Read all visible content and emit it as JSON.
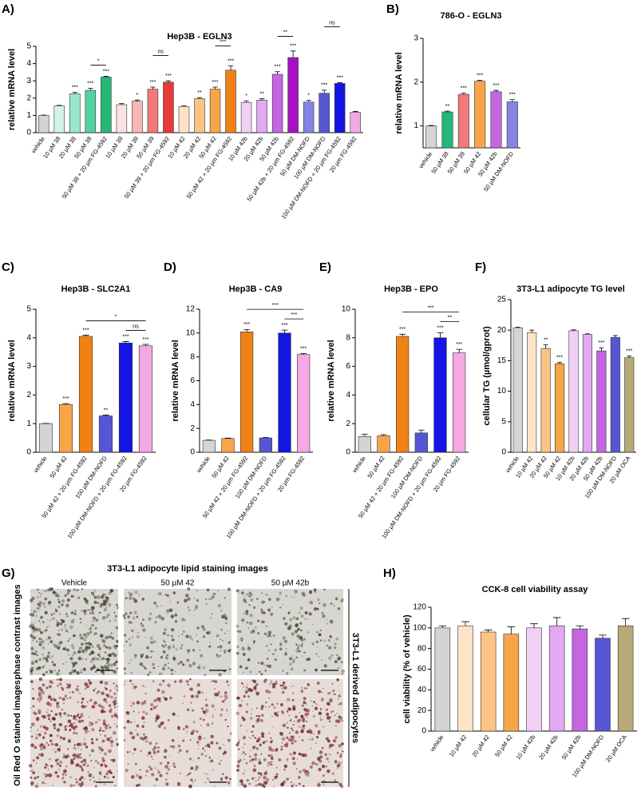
{
  "chart_data": [
    {
      "type": "bar",
      "panel": "A)",
      "title": "Hep3B - EGLN3",
      "ylabel": "relative mRNA level",
      "ylim": [
        0,
        5
      ],
      "yticks": [
        0,
        1,
        2,
        3,
        4,
        5
      ],
      "categories": [
        "vehicle",
        "10 µM 38",
        "20 µM 38",
        "50 µM 38",
        "50 µM 38 + 20 µm FG-4592",
        "10 µM 39",
        "20 µM 39",
        "50 µM 39",
        "50 µM 39 + 20 µm FG-4592",
        "10 µM 42",
        "20 µM 42",
        "50 µM 42",
        "50 µM 42 + 20 µm FG-4592",
        "10 µM 42b",
        "20 µM 42b",
        "50 µM 42b",
        "50 µM 42b + 20 µm FG-4592",
        "50 µM DM-NOFD",
        "100 µM DM-NOFD",
        "100 µM DM-NOFD + 20 µm FG-4592",
        "20 µm FG-4592"
      ],
      "values": [
        1.0,
        1.55,
        2.25,
        2.45,
        3.22,
        1.62,
        1.82,
        2.52,
        2.92,
        1.52,
        1.97,
        2.52,
        3.62,
        1.75,
        1.88,
        3.38,
        4.35,
        1.77,
        2.28,
        2.85,
        1.18
      ],
      "errors": [
        0.02,
        0.03,
        0.08,
        0.12,
        0.04,
        0.06,
        0.07,
        0.12,
        0.08,
        0.03,
        0.06,
        0.12,
        0.25,
        0.09,
        0.08,
        0.15,
        0.38,
        0.1,
        0.18,
        0.04,
        0.05
      ],
      "colors": [
        "#d4d4d4",
        "#d2f4e6",
        "#98e8cc",
        "#55d2a2",
        "#22b878",
        "#fde0e0",
        "#f9b4b4",
        "#f27a7a",
        "#e83838",
        "#fde3c6",
        "#fbc484",
        "#f8a448",
        "#f08214",
        "#f2d0f4",
        "#e2a8f2",
        "#c466e2",
        "#a412c4",
        "#8484e4",
        "#5656d4",
        "#1414e4",
        "#f4a8e4"
      ],
      "significance": [
        null,
        null,
        "***",
        "***",
        "***",
        null,
        "*",
        "***",
        "***",
        null,
        "**",
        "***",
        "***",
        "*",
        "**",
        "***",
        "***",
        "*",
        "***",
        "***",
        null
      ],
      "brackets": [
        {
          "between": [
            3,
            4
          ],
          "label": "*"
        },
        {
          "between": [
            7,
            8
          ],
          "label": "ns"
        },
        {
          "between": [
            11,
            12
          ],
          "label": "***"
        },
        {
          "between": [
            15,
            16
          ],
          "label": "**"
        },
        {
          "between": [
            18,
            19
          ],
          "label": "ns"
        }
      ]
    },
    {
      "type": "bar",
      "panel": "B)",
      "title": "786-O - EGLN3",
      "ylabel": "relative mRNA level",
      "ylim": [
        0.5,
        3
      ],
      "yticks": [
        1,
        2,
        3
      ],
      "categories": [
        "vehicle",
        "50 µM 38",
        "50 µM 39",
        "50 µM 42",
        "50 µM 42b",
        "50 µM DM-NOFD"
      ],
      "values": [
        1.0,
        1.32,
        1.72,
        2.02,
        1.78,
        1.55
      ],
      "errors": [
        0.01,
        0.02,
        0.03,
        0.02,
        0.03,
        0.05
      ],
      "colors": [
        "#d4d4d4",
        "#22b878",
        "#f27a7a",
        "#f8a448",
        "#c466e2",
        "#8484e4"
      ],
      "significance": [
        null,
        "**",
        "***",
        "***",
        "***",
        "***"
      ],
      "brackets": []
    },
    {
      "type": "bar",
      "panel": "C)",
      "title": "Hep3B - SLC2A1",
      "ylabel": "relative mRNA level",
      "ylim": [
        0,
        5
      ],
      "yticks": [
        0,
        1,
        2,
        3,
        4,
        5
      ],
      "categories": [
        "vehicle",
        "50 µM 42",
        "50 µM 42 + 20 µm FG-4592",
        "100 µM DM-NOFD",
        "100 µM DM-NOFD + 20 µm FG-4592",
        "20 µm FG-4592"
      ],
      "values": [
        1.0,
        1.67,
        4.05,
        1.27,
        3.82,
        3.72
      ],
      "errors": [
        0.01,
        0.03,
        0.04,
        0.03,
        0.05,
        0.05
      ],
      "colors": [
        "#d4d4d4",
        "#f8a448",
        "#f08214",
        "#5656d4",
        "#1414e4",
        "#f4a8e4"
      ],
      "significance": [
        null,
        "***",
        "***",
        "**",
        "***",
        "***"
      ],
      "brackets": [
        {
          "between": [
            2,
            5
          ],
          "label": "*"
        },
        {
          "between": [
            4,
            5
          ],
          "label": "ns"
        }
      ]
    },
    {
      "type": "bar",
      "panel": "D)",
      "title": "Hep3B - CA9",
      "ylabel": "relative mRNA level",
      "ylim": [
        0,
        12
      ],
      "yticks": [
        0,
        2,
        4,
        6,
        8,
        10,
        12
      ],
      "categories": [
        "vehicle",
        "50 µM 42",
        "50 µM 42 + 20 µm FG-4592",
        "100 µM DM-NOFD",
        "100 µM DM-NOFD + 20 µm FG-4592",
        "20 µm FG-4592"
      ],
      "values": [
        1.0,
        1.15,
        10.1,
        1.2,
        10.0,
        8.2
      ],
      "errors": [
        0.02,
        0.04,
        0.2,
        0.03,
        0.25,
        0.08
      ],
      "colors": [
        "#d4d4d4",
        "#f8a448",
        "#f08214",
        "#5656d4",
        "#1414e4",
        "#f4a8e4"
      ],
      "significance": [
        null,
        null,
        "***",
        null,
        "***",
        "***"
      ],
      "brackets": [
        {
          "between": [
            2,
            5
          ],
          "label": "***"
        },
        {
          "between": [
            4,
            5
          ],
          "label": "***"
        }
      ]
    },
    {
      "type": "bar",
      "panel": "E)",
      "title": "Hep3B - EPO",
      "ylabel": "relative mRNA level",
      "ylim": [
        0,
        10
      ],
      "yticks": [
        0,
        2,
        4,
        6,
        8,
        10
      ],
      "categories": [
        "vehicle",
        "50 µM 42",
        "50 µM 42 + 20 µm FG-4592",
        "100 µM DM-NOFD",
        "100 µM DM-NOFD + 20 µm FG-4592",
        "20 µm FG-4592"
      ],
      "values": [
        1.1,
        1.15,
        8.1,
        1.35,
        8.0,
        6.95
      ],
      "errors": [
        0.15,
        0.08,
        0.15,
        0.2,
        0.35,
        0.25
      ],
      "colors": [
        "#d4d4d4",
        "#f8a448",
        "#f08214",
        "#5656d4",
        "#1414e4",
        "#f4a8e4"
      ],
      "significance": [
        null,
        null,
        "***",
        null,
        "***",
        "***"
      ],
      "brackets": [
        {
          "between": [
            2,
            5
          ],
          "label": "***"
        },
        {
          "between": [
            4,
            5
          ],
          "label": "**"
        }
      ]
    },
    {
      "type": "bar",
      "panel": "F)",
      "title": "3T3-L1 adipocyte TG level",
      "ylabel": "cellular TG (µmol/gprot)",
      "ylim": [
        0,
        25
      ],
      "yticks": [
        0,
        5,
        10,
        15,
        20,
        25
      ],
      "categories": [
        "vehicle",
        "10 µM 42",
        "20 µM 42",
        "50 µM 42",
        "10 µM 42b",
        "20 µM 42b",
        "50 µM 42b",
        "100 µM DM-NOFD",
        "20 µM OCA"
      ],
      "values": [
        20.4,
        19.6,
        17.0,
        14.5,
        19.9,
        19.3,
        16.6,
        18.8,
        15.5
      ],
      "errors": [
        0.1,
        0.4,
        0.6,
        0.2,
        0.15,
        0.1,
        0.5,
        0.3,
        0.25
      ],
      "colors": [
        "#d4d4d4",
        "#fde3c6",
        "#fbc484",
        "#f8a448",
        "#f2d0f4",
        "#e2a8f2",
        "#c466e2",
        "#5656d4",
        "#b8aa78"
      ],
      "significance": [
        null,
        null,
        "**",
        "***",
        null,
        null,
        "***",
        null,
        "***"
      ],
      "brackets": []
    },
    {
      "type": "bar",
      "panel": "H)",
      "title": "CCK-8 cell viability assay",
      "ylabel": "cell viability (% of vehicle)",
      "ylim": [
        0,
        120
      ],
      "yticks": [
        0,
        20,
        40,
        60,
        80,
        100,
        120
      ],
      "categories": [
        "vehicle",
        "10 µM 42",
        "20 µM 42",
        "50 µM 42",
        "10 µM 42b",
        "20 µM 42b",
        "50 µM 42b",
        "100 µM DM-NOFD",
        "20 µM OCA"
      ],
      "values": [
        100,
        102,
        96,
        94,
        100,
        102,
        99,
        90,
        102
      ],
      "errors": [
        2,
        4,
        2,
        7,
        4,
        8,
        3,
        3,
        7
      ],
      "colors": [
        "#d4d4d4",
        "#fde3c6",
        "#fbc484",
        "#f8a448",
        "#f2d0f4",
        "#e2a8f2",
        "#c466e2",
        "#5656d4",
        "#b8aa78"
      ],
      "significance": [
        null,
        null,
        null,
        null,
        null,
        null,
        null,
        null,
        null
      ],
      "brackets": []
    }
  ],
  "image_panel": {
    "panel": "G)",
    "title": "3T3-L1 adipocyte lipid staining images",
    "columns": [
      "Vehicle",
      "50 µM 42",
      "50 µM 42b"
    ],
    "rows": [
      "phase contrast images",
      "Oil Red O stained images"
    ],
    "side_label": "3T3-L1 derived adipocytes"
  }
}
